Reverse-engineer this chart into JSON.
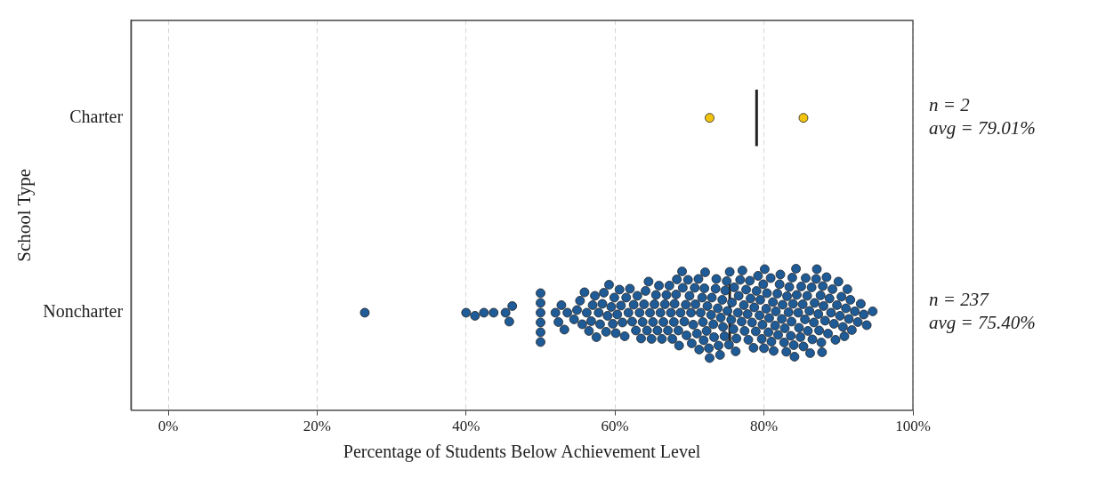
{
  "chart_data": {
    "type": "scatter",
    "orientation": "horizontal",
    "xlabel": "Percentage of Students Below Achievement Level",
    "ylabel": "School Type",
    "categories": [
      "Charter",
      "Noncharter"
    ],
    "xlim": [
      -5,
      100
    ],
    "xticks": [
      {
        "value": 0,
        "label": "0%"
      },
      {
        "value": 20,
        "label": "20%"
      },
      {
        "value": 40,
        "label": "40%"
      },
      {
        "value": 60,
        "label": "60%"
      },
      {
        "value": 80,
        "label": "80%"
      },
      {
        "value": 100,
        "label": "100%"
      }
    ],
    "grid": "x",
    "legend": false,
    "marker": "circle",
    "series": [
      {
        "color": "#f2c40f",
        "x": [
          "Charter",
          "Charter"
        ],
        "values": [
          72.7,
          85.3
        ]
      },
      {
        "color": "#1f5b96",
        "x": [
          "Noncharter",
          "Noncharter",
          "Noncharter",
          "Noncharter",
          "Noncharter",
          "Noncharter",
          "Noncharter",
          "Noncharter",
          "Noncharter",
          "Noncharter",
          "Noncharter",
          "Noncharter",
          "Noncharter",
          "Noncharter",
          "Noncharter",
          "Noncharter",
          "Noncharter",
          "Noncharter",
          "Noncharter",
          "Noncharter",
          "Noncharter",
          "Noncharter",
          "Noncharter",
          "Noncharter",
          "Noncharter",
          "Noncharter",
          "Noncharter",
          "Noncharter",
          "Noncharter",
          "Noncharter",
          "Noncharter",
          "Noncharter",
          "Noncharter",
          "Noncharter",
          "Noncharter",
          "Noncharter",
          "Noncharter",
          "Noncharter",
          "Noncharter",
          "Noncharter",
          "Noncharter",
          "Noncharter",
          "Noncharter",
          "Noncharter",
          "Noncharter",
          "Noncharter",
          "Noncharter",
          "Noncharter",
          "Noncharter",
          "Noncharter",
          "Noncharter",
          "Noncharter",
          "Noncharter",
          "Noncharter",
          "Noncharter",
          "Noncharter",
          "Noncharter",
          "Noncharter",
          "Noncharter",
          "Noncharter",
          "Noncharter",
          "Noncharter",
          "Noncharter",
          "Noncharter",
          "Noncharter",
          "Noncharter",
          "Noncharter",
          "Noncharter",
          "Noncharter",
          "Noncharter",
          "Noncharter",
          "Noncharter",
          "Noncharter",
          "Noncharter",
          "Noncharter",
          "Noncharter",
          "Noncharter",
          "Noncharter",
          "Noncharter",
          "Noncharter",
          "Noncharter",
          "Noncharter",
          "Noncharter",
          "Noncharter",
          "Noncharter",
          "Noncharter",
          "Noncharter",
          "Noncharter",
          "Noncharter",
          "Noncharter",
          "Noncharter",
          "Noncharter",
          "Noncharter",
          "Noncharter",
          "Noncharter",
          "Noncharter",
          "Noncharter",
          "Noncharter",
          "Noncharter",
          "Noncharter",
          "Noncharter",
          "Noncharter",
          "Noncharter",
          "Noncharter",
          "Noncharter",
          "Noncharter",
          "Noncharter",
          "Noncharter",
          "Noncharter",
          "Noncharter",
          "Noncharter",
          "Noncharter",
          "Noncharter",
          "Noncharter",
          "Noncharter",
          "Noncharter",
          "Noncharter",
          "Noncharter",
          "Noncharter",
          "Noncharter",
          "Noncharter",
          "Noncharter",
          "Noncharter",
          "Noncharter",
          "Noncharter",
          "Noncharter",
          "Noncharter",
          "Noncharter",
          "Noncharter",
          "Noncharter",
          "Noncharter",
          "Noncharter",
          "Noncharter",
          "Noncharter",
          "Noncharter",
          "Noncharter",
          "Noncharter",
          "Noncharter",
          "Noncharter",
          "Noncharter",
          "Noncharter",
          "Noncharter",
          "Noncharter",
          "Noncharter",
          "Noncharter",
          "Noncharter",
          "Noncharter",
          "Noncharter",
          "Noncharter",
          "Noncharter",
          "Noncharter",
          "Noncharter",
          "Noncharter",
          "Noncharter",
          "Noncharter",
          "Noncharter",
          "Noncharter",
          "Noncharter",
          "Noncharter",
          "Noncharter",
          "Noncharter",
          "Noncharter",
          "Noncharter",
          "Noncharter",
          "Noncharter",
          "Noncharter",
          "Noncharter",
          "Noncharter",
          "Noncharter",
          "Noncharter",
          "Noncharter",
          "Noncharter",
          "Noncharter",
          "Noncharter",
          "Noncharter",
          "Noncharter",
          "Noncharter",
          "Noncharter",
          "Noncharter",
          "Noncharter",
          "Noncharter",
          "Noncharter",
          "Noncharter",
          "Noncharter",
          "Noncharter",
          "Noncharter",
          "Noncharter",
          "Noncharter",
          "Noncharter",
          "Noncharter",
          "Noncharter",
          "Noncharter",
          "Noncharter",
          "Noncharter",
          "Noncharter",
          "Noncharter",
          "Noncharter",
          "Noncharter",
          "Noncharter",
          "Noncharter",
          "Noncharter",
          "Noncharter",
          "Noncharter",
          "Noncharter",
          "Noncharter",
          "Noncharter",
          "Noncharter",
          "Noncharter",
          "Noncharter",
          "Noncharter",
          "Noncharter",
          "Noncharter",
          "Noncharter",
          "Noncharter",
          "Noncharter",
          "Noncharter",
          "Noncharter",
          "Noncharter",
          "Noncharter",
          "Noncharter",
          "Noncharter",
          "Noncharter",
          "Noncharter",
          "Noncharter",
          "Noncharter",
          "Noncharter",
          "Noncharter",
          "Noncharter",
          "Noncharter",
          "Noncharter",
          "Noncharter",
          "Noncharter",
          "Noncharter",
          "Noncharter",
          "Noncharter",
          "Noncharter",
          "Noncharter"
        ],
        "values": [
          26.4,
          40.0,
          41.2,
          42.4,
          43.7,
          45.3,
          45.8,
          46.2,
          50.0,
          50.0,
          50.0,
          50.0,
          50.0,
          50.0,
          52.0,
          52.4,
          52.8,
          53.2,
          53.6,
          54.5,
          54.9,
          55.3,
          55.6,
          55.9,
          56.2,
          56.5,
          56.8,
          57.0,
          57.3,
          57.5,
          57.8,
          58.0,
          58.3,
          58.5,
          58.8,
          59.0,
          59.2,
          59.5,
          59.7,
          59.9,
          60.1,
          60.3,
          60.6,
          60.8,
          61.0,
          61.3,
          61.5,
          61.8,
          62.0,
          62.3,
          62.5,
          62.8,
          63.0,
          63.3,
          63.5,
          63.7,
          63.9,
          64.1,
          64.3,
          64.5,
          64.7,
          64.9,
          65.1,
          65.3,
          65.5,
          65.7,
          65.9,
          66.1,
          66.3,
          66.5,
          66.7,
          66.9,
          67.1,
          67.3,
          67.5,
          67.7,
          67.9,
          68.0,
          68.2,
          68.3,
          68.5,
          68.6,
          68.8,
          69.0,
          69.1,
          69.3,
          69.5,
          69.6,
          69.8,
          70.0,
          70.2,
          70.3,
          70.5,
          70.7,
          70.8,
          71.0,
          71.2,
          71.3,
          71.5,
          71.7,
          71.8,
          71.9,
          72.0,
          72.1,
          72.3,
          72.4,
          72.6,
          72.7,
          72.9,
          73.0,
          73.2,
          73.3,
          73.5,
          73.6,
          73.8,
          73.9,
          74.1,
          74.2,
          74.4,
          74.5,
          74.7,
          74.8,
          75.0,
          75.1,
          75.3,
          75.4,
          75.6,
          75.7,
          75.9,
          76.0,
          76.2,
          76.3,
          76.5,
          76.6,
          76.8,
          77.0,
          77.1,
          77.3,
          77.4,
          77.6,
          77.8,
          77.9,
          78.1,
          78.2,
          78.4,
          78.6,
          78.7,
          78.9,
          79.0,
          79.2,
          79.4,
          79.5,
          79.7,
          79.8,
          79.9,
          80.0,
          80.1,
          80.3,
          80.4,
          80.6,
          80.7,
          80.9,
          81.0,
          81.2,
          81.3,
          81.5,
          81.6,
          81.8,
          81.9,
          82.1,
          82.2,
          82.4,
          82.5,
          82.7,
          82.8,
          83.0,
          83.1,
          83.3,
          83.4,
          83.6,
          83.7,
          83.8,
          83.9,
          84.0,
          84.1,
          84.3,
          84.4,
          84.6,
          84.7,
          84.9,
          85.0,
          85.2,
          85.3,
          85.5,
          85.6,
          85.8,
          85.9,
          86.1,
          86.2,
          86.4,
          86.5,
          86.7,
          86.8,
          87.0,
          87.1,
          87.3,
          87.4,
          87.6,
          87.7,
          87.8,
          87.9,
          88.0,
          88.2,
          88.4,
          88.6,
          88.8,
          89.0,
          89.2,
          89.4,
          89.6,
          89.8,
          90.0,
          90.2,
          90.4,
          90.6,
          90.8,
          91.0,
          91.2,
          91.4,
          91.6,
          91.8,
          92.2,
          92.6,
          93.0,
          93.4,
          93.8,
          94.6
        ]
      }
    ],
    "ref_lines": [
      {
        "axis": "x",
        "value": 79.01,
        "color": "#222222"
      },
      {
        "axis": "x",
        "value": 75.4,
        "color": "#222222"
      }
    ],
    "annotations": [
      "n = 2\navg = 79.01%",
      "n = 237\navg = 75.40%"
    ]
  }
}
